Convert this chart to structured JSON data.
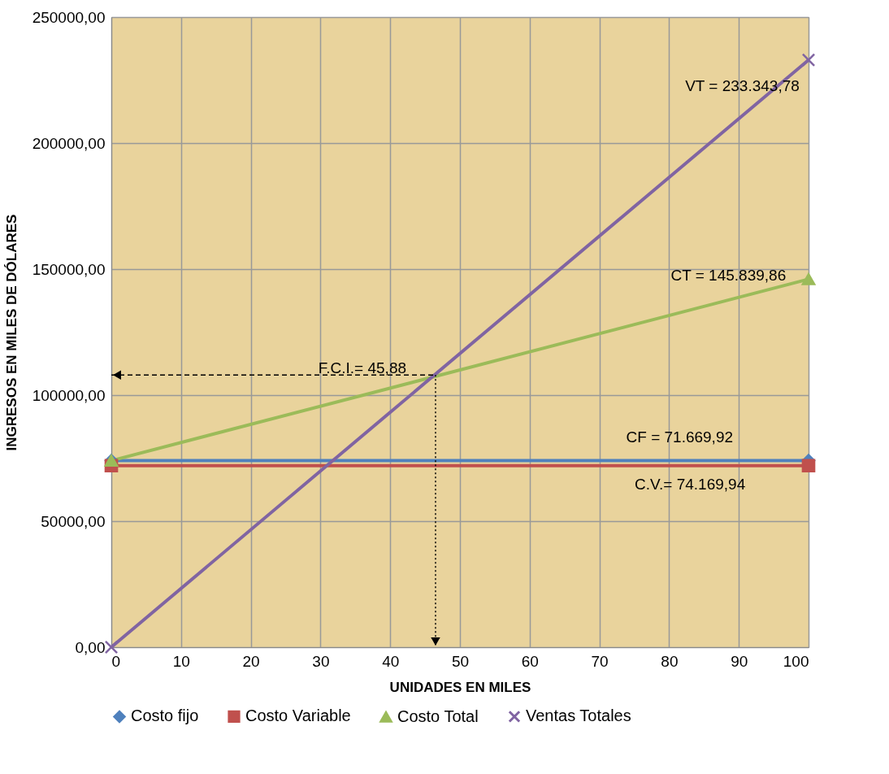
{
  "chart_data": {
    "type": "line",
    "xlabel": "UNIDADES  EN MILES",
    "ylabel": "INGRESOS EN MILES DE DÓLARES",
    "x": [
      0,
      100
    ],
    "series": [
      {
        "name": "Costo fijo",
        "color": "#4f81bd",
        "marker": "diamond",
        "values": [
          74000,
          74000
        ]
      },
      {
        "name": "Costo Variable",
        "color": "#c0504d",
        "marker": "square",
        "values": [
          72000,
          72000
        ]
      },
      {
        "name": "Costo Total",
        "color": "#9bbb59",
        "marker": "triangle",
        "values": [
          74000,
          146000
        ]
      },
      {
        "name": "Ventas Totales",
        "color": "#8064a2",
        "marker": "cross",
        "values": [
          0,
          233000
        ]
      }
    ],
    "xlim": [
      0,
      100
    ],
    "xticks": [
      0,
      10,
      20,
      30,
      40,
      50,
      60,
      70,
      80,
      90,
      100
    ],
    "ylim": [
      0,
      250000
    ],
    "yticks": [
      {
        "value": 0,
        "label": "0,00"
      },
      {
        "value": 50000,
        "label": "50000,00"
      },
      {
        "value": 100000,
        "label": "100000,00"
      },
      {
        "value": 150000,
        "label": "150000,00"
      },
      {
        "value": 200000,
        "label": "200000,00"
      },
      {
        "value": 250000,
        "label": "250000,00"
      }
    ],
    "annotations": [
      "VT = 233.343,78",
      "CT = 145.839,86",
      "F.C.I.= 45,88",
      "CF = 71.669,92",
      "C.V.= 74.169,94"
    ],
    "ref_lines": [
      {
        "axis": "x",
        "value": 46.5,
        "line_style": "dotted",
        "color": "#000000"
      },
      {
        "axis": "y",
        "value": 108000,
        "line_style": "dashed",
        "color": "#000000"
      }
    ],
    "grid": true,
    "legend": "bottom"
  }
}
